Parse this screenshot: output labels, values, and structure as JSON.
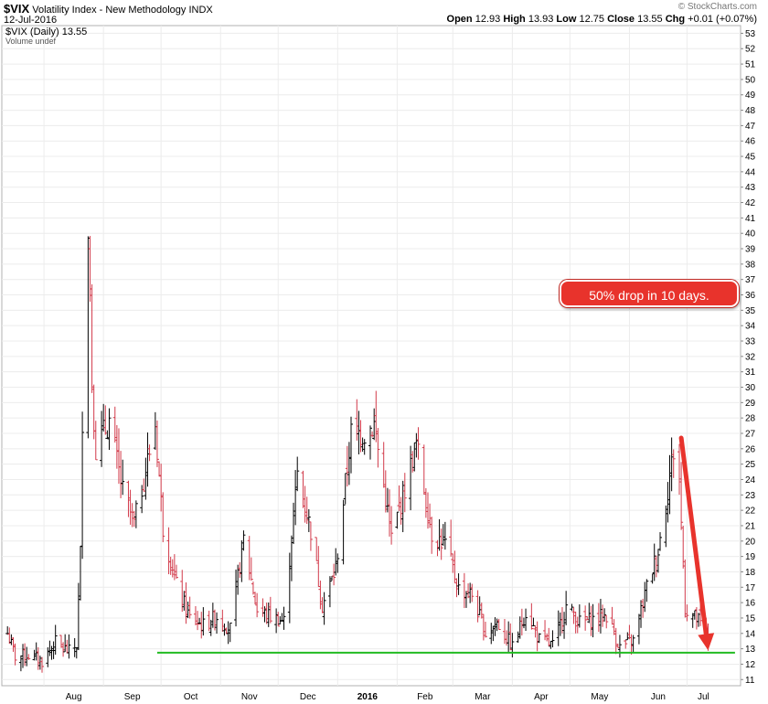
{
  "header": {
    "symbol": "$VIX",
    "name": "Volatility Index - New Methodology",
    "exchange": "INDX",
    "date": "12-Jul-2016",
    "logo": "© StockCharts.com",
    "ohlc": {
      "open_label": "Open",
      "open": "12.93",
      "high_label": "High",
      "high": "13.93",
      "low_label": "Low",
      "low": "12.75",
      "close_label": "Close",
      "close": "13.55",
      "chg_label": "Chg",
      "chg": "+0.01 (+0.07%)"
    }
  },
  "legend": {
    "series": "$VIX (Daily) 13.55",
    "volume": "Volume undef"
  },
  "annotation": {
    "text": "50% drop in 10 days.",
    "color": "#e8332c"
  },
  "colors": {
    "up_bar": "#000000",
    "down_bar": "#d23a4a",
    "support_line": "#22bb22",
    "arrow": "#e8332c",
    "grid": "#ececec"
  },
  "chart_data": {
    "type": "ohlc",
    "ylim": [
      10.6,
      53.5
    ],
    "y_ticks": [
      11,
      12,
      13,
      14,
      15,
      16,
      17,
      18,
      19,
      20,
      21,
      22,
      23,
      24,
      25,
      26,
      27,
      28,
      29,
      30,
      31,
      32,
      33,
      34,
      35,
      36,
      37,
      38,
      39,
      40,
      41,
      42,
      43,
      44,
      45,
      46,
      47,
      48,
      49,
      50,
      51,
      52,
      53
    ],
    "x_labels": [
      "Aug",
      "Sep",
      "Oct",
      "Nov",
      "Dec",
      "2016",
      "Feb",
      "Mar",
      "Apr",
      "May",
      "Jun",
      "Jul"
    ],
    "x_label_dates": [
      "2015-08-01",
      "2015-09-01",
      "2015-10-01",
      "2015-11-01",
      "2015-12-01",
      "2016-01-01",
      "2016-02-01",
      "2016-03-01",
      "2016-04-01",
      "2016-05-01",
      "2016-06-01",
      "2016-07-01"
    ],
    "xlim": [
      "2015-07-11",
      "2016-07-27"
    ],
    "support_line": {
      "from": "2015-09-29",
      "to": "2016-07-26",
      "level": 12.75
    },
    "arrow": {
      "from_date": "2016-06-28",
      "from_value": 26.7,
      "to_date": "2016-07-12",
      "to_value": 12.9
    },
    "anchors": [
      [
        "2015-07-13",
        14.0
      ],
      [
        "2015-07-17",
        12.5
      ],
      [
        "2015-07-24",
        12.6
      ],
      [
        "2015-07-31",
        12.2
      ],
      [
        "2015-08-07",
        13.4
      ],
      [
        "2015-08-14",
        12.8
      ],
      [
        "2015-08-18",
        13.2
      ],
      [
        "2015-08-20",
        19.2
      ],
      [
        "2015-08-21",
        28.0
      ],
      [
        "2015-08-24",
        40.7
      ],
      [
        "2015-08-25",
        36.0
      ],
      [
        "2015-08-26",
        30.3
      ],
      [
        "2015-08-28",
        26.0
      ],
      [
        "2015-09-04",
        27.8
      ],
      [
        "2015-09-11",
        23.2
      ],
      [
        "2015-09-17",
        21.1
      ],
      [
        "2015-09-28",
        27.6
      ],
      [
        "2015-10-02",
        20.9
      ],
      [
        "2015-10-09",
        17.1
      ],
      [
        "2015-10-16",
        15.0
      ],
      [
        "2015-10-23",
        14.5
      ],
      [
        "2015-10-30",
        15.1
      ],
      [
        "2015-11-06",
        14.3
      ],
      [
        "2015-11-13",
        20.1
      ],
      [
        "2015-11-20",
        15.5
      ],
      [
        "2015-11-27",
        15.1
      ],
      [
        "2015-12-04",
        14.8
      ],
      [
        "2015-12-11",
        24.4
      ],
      [
        "2015-12-18",
        20.7
      ],
      [
        "2015-12-24",
        15.8
      ],
      [
        "2015-12-31",
        18.2
      ],
      [
        "2016-01-08",
        27.0
      ],
      [
        "2016-01-15",
        27.0
      ],
      [
        "2016-01-20",
        27.6
      ],
      [
        "2016-01-29",
        20.2
      ],
      [
        "2016-02-05",
        23.4
      ],
      [
        "2016-02-11",
        26.3
      ],
      [
        "2016-02-19",
        20.5
      ],
      [
        "2016-02-26",
        19.8
      ],
      [
        "2016-03-04",
        16.9
      ],
      [
        "2016-03-11",
        16.5
      ],
      [
        "2016-03-18",
        14.0
      ],
      [
        "2016-03-24",
        14.7
      ],
      [
        "2016-04-01",
        13.1
      ],
      [
        "2016-04-08",
        15.4
      ],
      [
        "2016-04-15",
        13.6
      ],
      [
        "2016-04-22",
        13.2
      ],
      [
        "2016-04-29",
        15.7
      ],
      [
        "2016-05-06",
        14.7
      ],
      [
        "2016-05-13",
        14.9
      ],
      [
        "2016-05-20",
        15.2
      ],
      [
        "2016-05-27",
        13.1
      ],
      [
        "2016-06-03",
        13.5
      ],
      [
        "2016-06-10",
        17.0
      ],
      [
        "2016-06-16",
        19.4
      ],
      [
        "2016-06-24",
        25.8
      ],
      [
        "2016-06-27",
        23.9
      ],
      [
        "2016-06-30",
        15.6
      ],
      [
        "2016-07-07",
        14.8
      ],
      [
        "2016-07-12",
        13.55
      ]
    ]
  }
}
